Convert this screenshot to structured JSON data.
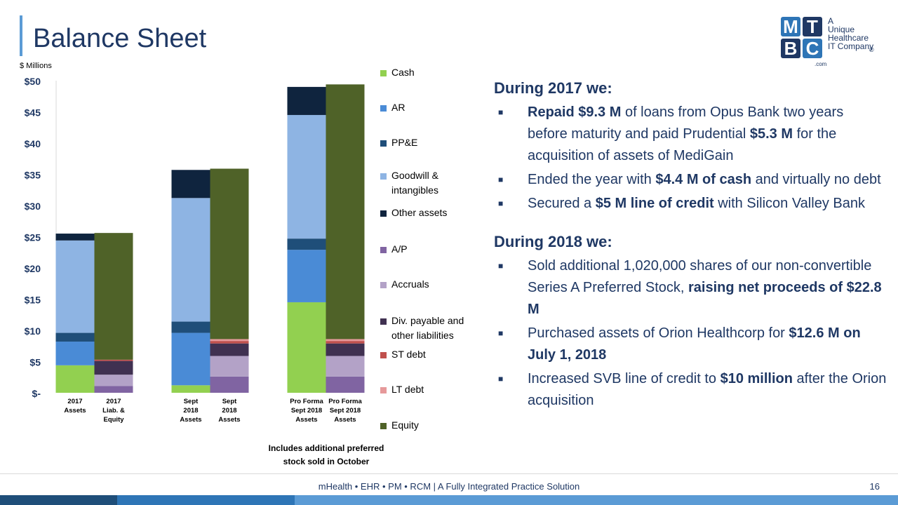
{
  "slide": {
    "title": "Balance Sheet",
    "units": "$ Millions",
    "note_line1": "Includes additional preferred",
    "note_line2": "stock sold in October",
    "footer": "mHealth • EHR • PM • RCM | A Fully Integrated Practice Solution",
    "page_number": "16"
  },
  "logo": {
    "letters": [
      "M",
      "T",
      "B",
      "C"
    ],
    "tagline": [
      "A",
      "Unique",
      "Healthcare",
      "IT Company"
    ],
    "registered": "®",
    "domain_suffix": ".com"
  },
  "colors": {
    "navy": "#1f3864",
    "accent": "#5b9bd5",
    "logo_blue": "#2e75b6",
    "logo_dark": "#1f3864"
  },
  "chart_data": {
    "type": "bar",
    "stacked": true,
    "ylabel": "$ Millions",
    "ylim": [
      0,
      50
    ],
    "yticks": [
      0,
      5,
      10,
      15,
      20,
      25,
      30,
      35,
      40,
      45,
      50
    ],
    "ytick_labels": [
      "$-",
      "$5",
      "$10",
      "$15",
      "$20",
      "$25",
      "$30",
      "$35",
      "$40",
      "$45",
      "$50"
    ],
    "categories": [
      [
        "2017",
        "Assets"
      ],
      [
        "2017",
        "Liab. &",
        "Equity"
      ],
      [
        "Sept",
        "2018",
        "Assets"
      ],
      [
        "Sept",
        "2018",
        "Assets"
      ],
      [
        "Pro Forma",
        "Sept 2018",
        "Assets"
      ],
      [
        "Pro Forma",
        "Sept 2018",
        "Assets"
      ]
    ],
    "series": [
      {
        "name": "Cash",
        "color": "#92d050",
        "values": [
          4.4,
          0,
          1.2,
          0,
          14.5,
          0
        ]
      },
      {
        "name": "AR",
        "color": "#4a8bd6",
        "values": [
          3.8,
          0,
          8.4,
          0,
          8.4,
          0
        ]
      },
      {
        "name": "PP&E",
        "color": "#1f4e79",
        "values": [
          1.4,
          0,
          1.8,
          0,
          1.8,
          0
        ]
      },
      {
        "name": "Goodwill & intangibles",
        "color": "#8eb4e3",
        "values": [
          14.8,
          0,
          19.8,
          0,
          19.8,
          0
        ]
      },
      {
        "name": "Other assets",
        "color": "#0f243e",
        "values": [
          1.1,
          0,
          4.5,
          0,
          4.5,
          0
        ]
      },
      {
        "name": "A/P",
        "color": "#8064a2",
        "values": [
          0,
          1.1,
          0,
          2.6,
          0,
          2.6
        ]
      },
      {
        "name": "Accruals",
        "color": "#b3a2c7",
        "values": [
          0,
          1.8,
          0,
          3.3,
          0,
          3.3
        ]
      },
      {
        "name": "Div. payable and other liabilities",
        "color": "#403151",
        "values": [
          0,
          2.2,
          0,
          2.0,
          0,
          2.0
        ]
      },
      {
        "name": "ST debt",
        "color": "#c0504d",
        "values": [
          0,
          0.2,
          0,
          0.4,
          0,
          0.4
        ]
      },
      {
        "name": "LT debt",
        "color": "#e6999a",
        "values": [
          0,
          0,
          0,
          0.3,
          0,
          0.3
        ]
      },
      {
        "name": "Equity",
        "color": "#4f6228",
        "values": [
          0,
          20.3,
          0,
          27.3,
          0,
          40.8
        ]
      }
    ],
    "legend_labels": [
      [
        "Cash"
      ],
      [
        "AR"
      ],
      [
        "PP&E"
      ],
      [
        "Goodwill &",
        "intangibles"
      ],
      [
        "Other assets"
      ],
      [
        "A/P"
      ],
      [
        "Accruals"
      ],
      [
        "Div. payable and",
        "other liabilities"
      ],
      [
        "ST debt"
      ],
      [
        "LT debt"
      ],
      [
        "Equity"
      ]
    ],
    "legend_placement": "right",
    "grid": false
  },
  "bullets": {
    "h2017": "During 2017 we:",
    "b2017": [
      [
        {
          "t": "Repaid $9.3 M",
          "b": true
        },
        {
          "t": " of loans from Opus Bank two years before maturity and paid Prudential "
        },
        {
          "t": "$5.3 M",
          "b": true
        },
        {
          "t": " for the acquisition of assets of MediGain"
        }
      ],
      [
        {
          "t": "Ended the year with "
        },
        {
          "t": "$4.4 M of cash",
          "b": true
        },
        {
          "t": " and virtually no debt"
        }
      ],
      [
        {
          "t": "Secured a "
        },
        {
          "t": "$5 M line of credit",
          "b": true
        },
        {
          "t": " with Silicon Valley Bank"
        }
      ]
    ],
    "h2018": "During 2018 we:",
    "b2018": [
      [
        {
          "t": "Sold additional 1,020,000 shares of our non-convertible Series A Preferred Stock, "
        },
        {
          "t": "raising net proceeds of $22.8 M",
          "b": true
        }
      ],
      [
        {
          "t": "Purchased assets of Orion Healthcorp for "
        },
        {
          "t": "$12.6 M on July 1, 2018",
          "b": true
        }
      ],
      [
        {
          "t": "Increased SVB line of credit to "
        },
        {
          "t": "$10 million",
          "b": true
        },
        {
          "t": " after the Orion acquisition"
        }
      ]
    ],
    "marker": "■"
  },
  "bottom_bar": [
    {
      "color": "#1f4e79"
    },
    {
      "color": "#2e75b6"
    },
    {
      "color": "#5b9bd5"
    }
  ]
}
